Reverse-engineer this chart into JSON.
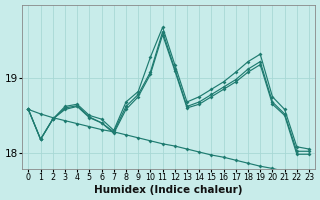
{
  "bg_color": "#c8ecea",
  "grid_color": "#a8d8d5",
  "line_color": "#1e7b70",
  "xlabel": "Humidex (Indice chaleur)",
  "xlim": [
    -0.5,
    23.5
  ],
  "ylim": [
    17.78,
    19.98
  ],
  "yticks": [
    18,
    19
  ],
  "ytick_labels": [
    "18",
    "19"
  ],
  "xticks": [
    0,
    1,
    2,
    3,
    4,
    5,
    6,
    7,
    8,
    9,
    10,
    11,
    12,
    13,
    14,
    15,
    16,
    17,
    18,
    19,
    20,
    21,
    22,
    23
  ],
  "series1": [
    18.58,
    18.18,
    18.45,
    18.62,
    18.65,
    18.5,
    18.45,
    18.3,
    18.68,
    18.82,
    19.28,
    19.68,
    19.18,
    18.68,
    18.75,
    18.85,
    18.95,
    19.08,
    19.22,
    19.32,
    18.75,
    18.58,
    18.08,
    18.05
  ],
  "series2": [
    18.58,
    18.18,
    18.45,
    18.6,
    18.63,
    18.48,
    18.4,
    18.28,
    18.62,
    18.78,
    19.08,
    19.62,
    19.12,
    18.62,
    18.68,
    18.78,
    18.88,
    18.98,
    19.12,
    19.22,
    18.68,
    18.52,
    18.02,
    18.02
  ],
  "series3": [
    18.58,
    18.18,
    18.45,
    18.58,
    18.62,
    18.47,
    18.4,
    18.26,
    18.58,
    18.75,
    19.05,
    19.58,
    19.1,
    18.6,
    18.65,
    18.75,
    18.85,
    18.95,
    19.08,
    19.18,
    18.65,
    18.5,
    17.98,
    17.98
  ],
  "series4_trend": [
    18.58,
    18.52,
    18.47,
    18.43,
    18.39,
    18.35,
    18.31,
    18.28,
    18.24,
    18.2,
    18.16,
    18.12,
    18.09,
    18.05,
    18.01,
    17.97,
    17.94,
    17.9,
    17.86,
    17.82,
    17.79,
    17.75,
    17.71,
    17.68
  ]
}
